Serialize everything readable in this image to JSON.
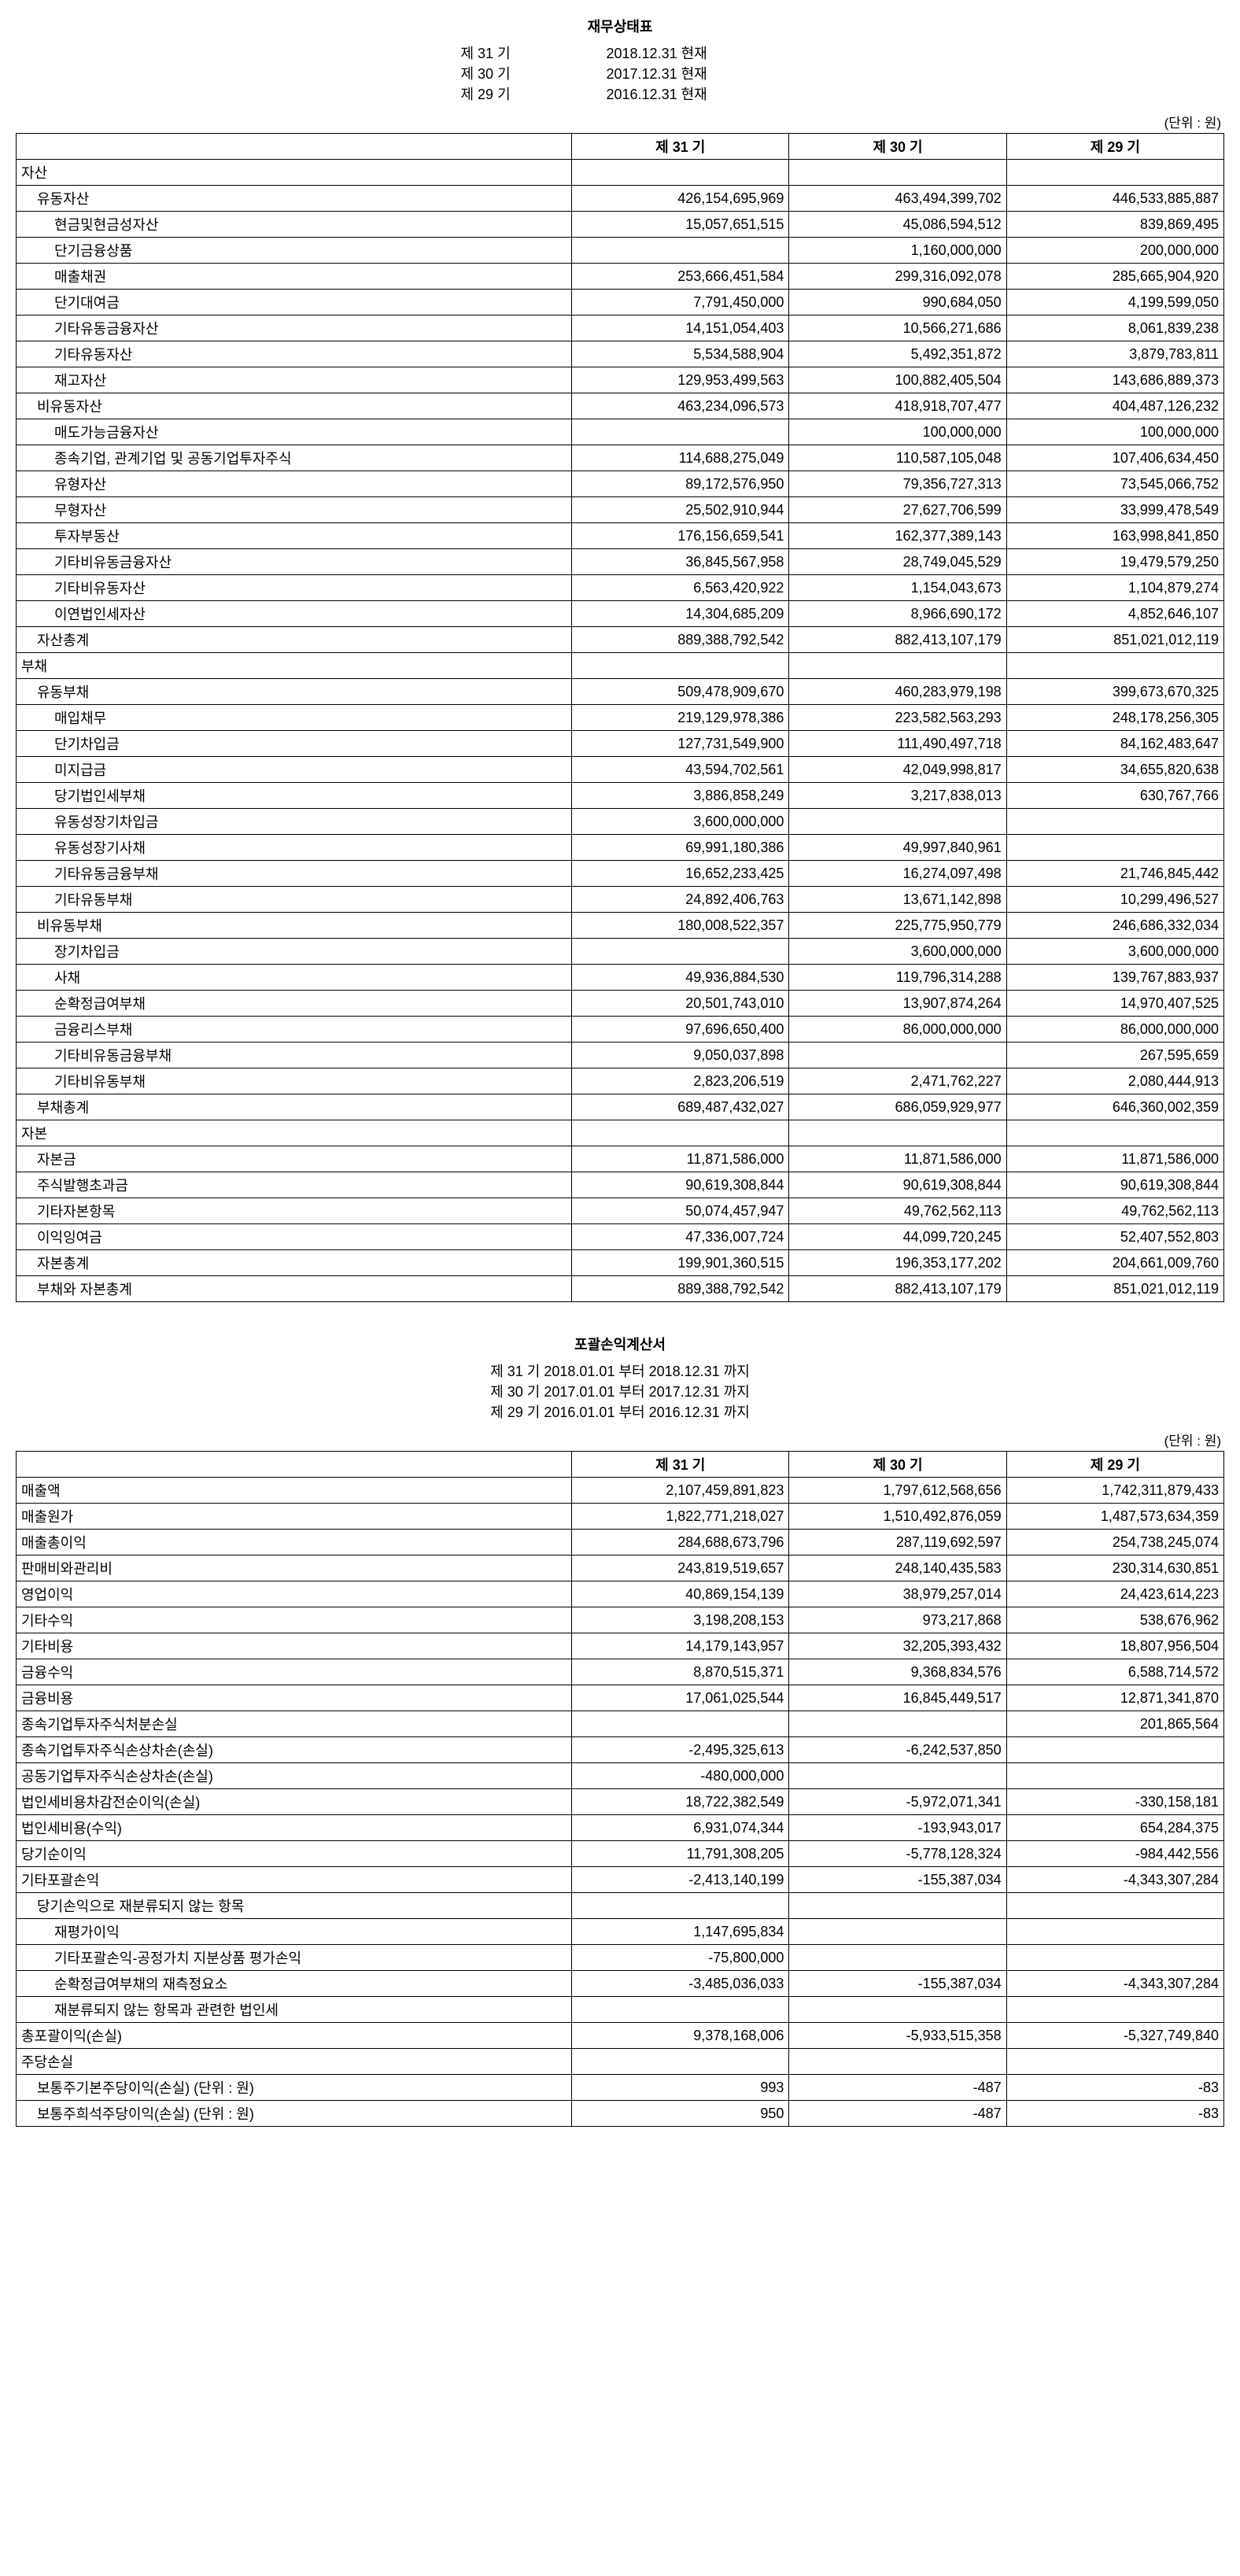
{
  "bs": {
    "title": "재무상태표",
    "periods": [
      {
        "label": "제 31 기",
        "date": "2018.12.31 현재"
      },
      {
        "label": "제 30 기",
        "date": "2017.12.31 현재"
      },
      {
        "label": "제 29 기",
        "date": "2016.12.31 현재"
      }
    ],
    "unit": "(단위 : 원)",
    "columns": [
      "제 31 기",
      "제 30 기",
      "제 29 기"
    ],
    "rows": [
      {
        "label": "자산",
        "indent": 0,
        "v": [
          "",
          "",
          ""
        ]
      },
      {
        "label": "유동자산",
        "indent": 1,
        "v": [
          "426,154,695,969",
          "463,494,399,702",
          "446,533,885,887"
        ]
      },
      {
        "label": "현금및현금성자산",
        "indent": 2,
        "v": [
          "15,057,651,515",
          "45,086,594,512",
          "839,869,495"
        ]
      },
      {
        "label": "단기금융상품",
        "indent": 2,
        "v": [
          "",
          "1,160,000,000",
          "200,000,000"
        ]
      },
      {
        "label": "매출채권",
        "indent": 2,
        "v": [
          "253,666,451,584",
          "299,316,092,078",
          "285,665,904,920"
        ]
      },
      {
        "label": "단기대여금",
        "indent": 2,
        "v": [
          "7,791,450,000",
          "990,684,050",
          "4,199,599,050"
        ]
      },
      {
        "label": "기타유동금융자산",
        "indent": 2,
        "v": [
          "14,151,054,403",
          "10,566,271,686",
          "8,061,839,238"
        ]
      },
      {
        "label": "기타유동자산",
        "indent": 2,
        "v": [
          "5,534,588,904",
          "5,492,351,872",
          "3,879,783,811"
        ]
      },
      {
        "label": "재고자산",
        "indent": 2,
        "v": [
          "129,953,499,563",
          "100,882,405,504",
          "143,686,889,373"
        ]
      },
      {
        "label": "비유동자산",
        "indent": 1,
        "v": [
          "463,234,096,573",
          "418,918,707,477",
          "404,487,126,232"
        ]
      },
      {
        "label": "매도가능금융자산",
        "indent": 2,
        "v": [
          "",
          "100,000,000",
          "100,000,000"
        ]
      },
      {
        "label": "종속기업, 관계기업 및 공동기업투자주식",
        "indent": 2,
        "v": [
          "114,688,275,049",
          "110,587,105,048",
          "107,406,634,450"
        ]
      },
      {
        "label": "유형자산",
        "indent": 2,
        "v": [
          "89,172,576,950",
          "79,356,727,313",
          "73,545,066,752"
        ]
      },
      {
        "label": "무형자산",
        "indent": 2,
        "v": [
          "25,502,910,944",
          "27,627,706,599",
          "33,999,478,549"
        ]
      },
      {
        "label": "투자부동산",
        "indent": 2,
        "v": [
          "176,156,659,541",
          "162,377,389,143",
          "163,998,841,850"
        ]
      },
      {
        "label": "기타비유동금융자산",
        "indent": 2,
        "v": [
          "36,845,567,958",
          "28,749,045,529",
          "19,479,579,250"
        ]
      },
      {
        "label": "기타비유동자산",
        "indent": 2,
        "v": [
          "6,563,420,922",
          "1,154,043,673",
          "1,104,879,274"
        ]
      },
      {
        "label": "이연법인세자산",
        "indent": 2,
        "v": [
          "14,304,685,209",
          "8,966,690,172",
          "4,852,646,107"
        ]
      },
      {
        "label": "자산총계",
        "indent": 1,
        "v": [
          "889,388,792,542",
          "882,413,107,179",
          "851,021,012,119"
        ]
      },
      {
        "label": "부채",
        "indent": 0,
        "v": [
          "",
          "",
          ""
        ]
      },
      {
        "label": "유동부채",
        "indent": 1,
        "v": [
          "509,478,909,670",
          "460,283,979,198",
          "399,673,670,325"
        ]
      },
      {
        "label": "매입채무",
        "indent": 2,
        "v": [
          "219,129,978,386",
          "223,582,563,293",
          "248,178,256,305"
        ]
      },
      {
        "label": "단기차입금",
        "indent": 2,
        "v": [
          "127,731,549,900",
          "111,490,497,718",
          "84,162,483,647"
        ]
      },
      {
        "label": "미지급금",
        "indent": 2,
        "v": [
          "43,594,702,561",
          "42,049,998,817",
          "34,655,820,638"
        ]
      },
      {
        "label": "당기법인세부채",
        "indent": 2,
        "v": [
          "3,886,858,249",
          "3,217,838,013",
          "630,767,766"
        ]
      },
      {
        "label": "유동성장기차입금",
        "indent": 2,
        "v": [
          "3,600,000,000",
          "",
          ""
        ]
      },
      {
        "label": "유동성장기사채",
        "indent": 2,
        "v": [
          "69,991,180,386",
          "49,997,840,961",
          ""
        ]
      },
      {
        "label": "기타유동금융부채",
        "indent": 2,
        "v": [
          "16,652,233,425",
          "16,274,097,498",
          "21,746,845,442"
        ]
      },
      {
        "label": "기타유동부채",
        "indent": 2,
        "v": [
          "24,892,406,763",
          "13,671,142,898",
          "10,299,496,527"
        ]
      },
      {
        "label": "비유동부채",
        "indent": 1,
        "v": [
          "180,008,522,357",
          "225,775,950,779",
          "246,686,332,034"
        ]
      },
      {
        "label": "장기차입금",
        "indent": 2,
        "v": [
          "",
          "3,600,000,000",
          "3,600,000,000"
        ]
      },
      {
        "label": "사채",
        "indent": 2,
        "v": [
          "49,936,884,530",
          "119,796,314,288",
          "139,767,883,937"
        ]
      },
      {
        "label": "순확정급여부채",
        "indent": 2,
        "v": [
          "20,501,743,010",
          "13,907,874,264",
          "14,970,407,525"
        ]
      },
      {
        "label": "금융리스부채",
        "indent": 2,
        "v": [
          "97,696,650,400",
          "86,000,000,000",
          "86,000,000,000"
        ]
      },
      {
        "label": "기타비유동금융부채",
        "indent": 2,
        "v": [
          "9,050,037,898",
          "",
          "267,595,659"
        ]
      },
      {
        "label": "기타비유동부채",
        "indent": 2,
        "v": [
          "2,823,206,519",
          "2,471,762,227",
          "2,080,444,913"
        ]
      },
      {
        "label": "부채총계",
        "indent": 1,
        "v": [
          "689,487,432,027",
          "686,059,929,977",
          "646,360,002,359"
        ]
      },
      {
        "label": "자본",
        "indent": 0,
        "v": [
          "",
          "",
          ""
        ]
      },
      {
        "label": "자본금",
        "indent": 1,
        "v": [
          "11,871,586,000",
          "11,871,586,000",
          "11,871,586,000"
        ]
      },
      {
        "label": "주식발행초과금",
        "indent": 1,
        "v": [
          "90,619,308,844",
          "90,619,308,844",
          "90,619,308,844"
        ]
      },
      {
        "label": "기타자본항목",
        "indent": 1,
        "v": [
          "50,074,457,947",
          "49,762,562,113",
          "49,762,562,113"
        ]
      },
      {
        "label": "이익잉여금",
        "indent": 1,
        "v": [
          "47,336,007,724",
          "44,099,720,245",
          "52,407,552,803"
        ]
      },
      {
        "label": "자본총계",
        "indent": 1,
        "v": [
          "199,901,360,515",
          "196,353,177,202",
          "204,661,009,760"
        ]
      },
      {
        "label": "부채와 자본총계",
        "indent": 1,
        "v": [
          "889,388,792,542",
          "882,413,107,179",
          "851,021,012,119"
        ]
      }
    ]
  },
  "is": {
    "title": "포괄손익계산서",
    "periods": [
      {
        "label": "제 31 기 2018.01.01 부터 2018.12.31 까지"
      },
      {
        "label": "제 30 기 2017.01.01 부터 2017.12.31 까지"
      },
      {
        "label": "제 29 기 2016.01.01 부터 2016.12.31 까지"
      }
    ],
    "unit": "(단위 : 원)",
    "columns": [
      "제 31 기",
      "제 30 기",
      "제 29 기"
    ],
    "rows": [
      {
        "label": "매출액",
        "indent": 0,
        "v": [
          "2,107,459,891,823",
          "1,797,612,568,656",
          "1,742,311,879,433"
        ]
      },
      {
        "label": "매출원가",
        "indent": 0,
        "v": [
          "1,822,771,218,027",
          "1,510,492,876,059",
          "1,487,573,634,359"
        ]
      },
      {
        "label": "매출총이익",
        "indent": 0,
        "v": [
          "284,688,673,796",
          "287,119,692,597",
          "254,738,245,074"
        ]
      },
      {
        "label": "판매비와관리비",
        "indent": 0,
        "v": [
          "243,819,519,657",
          "248,140,435,583",
          "230,314,630,851"
        ]
      },
      {
        "label": "영업이익",
        "indent": 0,
        "v": [
          "40,869,154,139",
          "38,979,257,014",
          "24,423,614,223"
        ]
      },
      {
        "label": "기타수익",
        "indent": 0,
        "v": [
          "3,198,208,153",
          "973,217,868",
          "538,676,962"
        ]
      },
      {
        "label": "기타비용",
        "indent": 0,
        "v": [
          "14,179,143,957",
          "32,205,393,432",
          "18,807,956,504"
        ]
      },
      {
        "label": "금융수익",
        "indent": 0,
        "v": [
          "8,870,515,371",
          "9,368,834,576",
          "6,588,714,572"
        ]
      },
      {
        "label": "금융비용",
        "indent": 0,
        "v": [
          "17,061,025,544",
          "16,845,449,517",
          "12,871,341,870"
        ]
      },
      {
        "label": "종속기업투자주식처분손실",
        "indent": 0,
        "v": [
          "",
          "",
          "201,865,564"
        ]
      },
      {
        "label": "종속기업투자주식손상차손(손실)",
        "indent": 0,
        "v": [
          "-2,495,325,613",
          "-6,242,537,850",
          ""
        ]
      },
      {
        "label": "공동기업투자주식손상차손(손실)",
        "indent": 0,
        "v": [
          "-480,000,000",
          "",
          ""
        ]
      },
      {
        "label": "법인세비용차감전순이익(손실)",
        "indent": 0,
        "v": [
          "18,722,382,549",
          "-5,972,071,341",
          "-330,158,181"
        ]
      },
      {
        "label": "법인세비용(수익)",
        "indent": 0,
        "v": [
          "6,931,074,344",
          "-193,943,017",
          "654,284,375"
        ]
      },
      {
        "label": "당기순이익",
        "indent": 0,
        "v": [
          "11,791,308,205",
          "-5,778,128,324",
          "-984,442,556"
        ]
      },
      {
        "label": "기타포괄손익",
        "indent": 0,
        "v": [
          "-2,413,140,199",
          "-155,387,034",
          "-4,343,307,284"
        ]
      },
      {
        "label": "당기손익으로 재분류되지 않는 항목",
        "indent": 1,
        "v": [
          "",
          "",
          ""
        ]
      },
      {
        "label": "재평가이익",
        "indent": 2,
        "v": [
          "1,147,695,834",
          "",
          ""
        ]
      },
      {
        "label": "기타포괄손익-공정가치 지분상품 평가손익",
        "indent": 2,
        "v": [
          "-75,800,000",
          "",
          ""
        ]
      },
      {
        "label": "순확정급여부채의 재측정요소",
        "indent": 2,
        "v": [
          "-3,485,036,033",
          "-155,387,034",
          "-4,343,307,284"
        ]
      },
      {
        "label": "재분류되지 않는 항목과 관련한 법인세",
        "indent": 2,
        "v": [
          "",
          "",
          ""
        ]
      },
      {
        "label": "총포괄이익(손실)",
        "indent": 0,
        "v": [
          "9,378,168,006",
          "-5,933,515,358",
          "-5,327,749,840"
        ]
      },
      {
        "label": "주당손실",
        "indent": 0,
        "v": [
          "",
          "",
          ""
        ]
      },
      {
        "label": "보통주기본주당이익(손실) (단위 : 원)",
        "indent": 1,
        "v": [
          "993",
          "-487",
          "-83"
        ]
      },
      {
        "label": "보통주희석주당이익(손실) (단위 : 원)",
        "indent": 1,
        "v": [
          "950",
          "-487",
          "-83"
        ]
      }
    ]
  },
  "style": {
    "border_color": "#000000",
    "font_family": "Malgun Gothic",
    "base_font_size_pt": 14,
    "background": "#ffffff",
    "text_color": "#000000"
  }
}
